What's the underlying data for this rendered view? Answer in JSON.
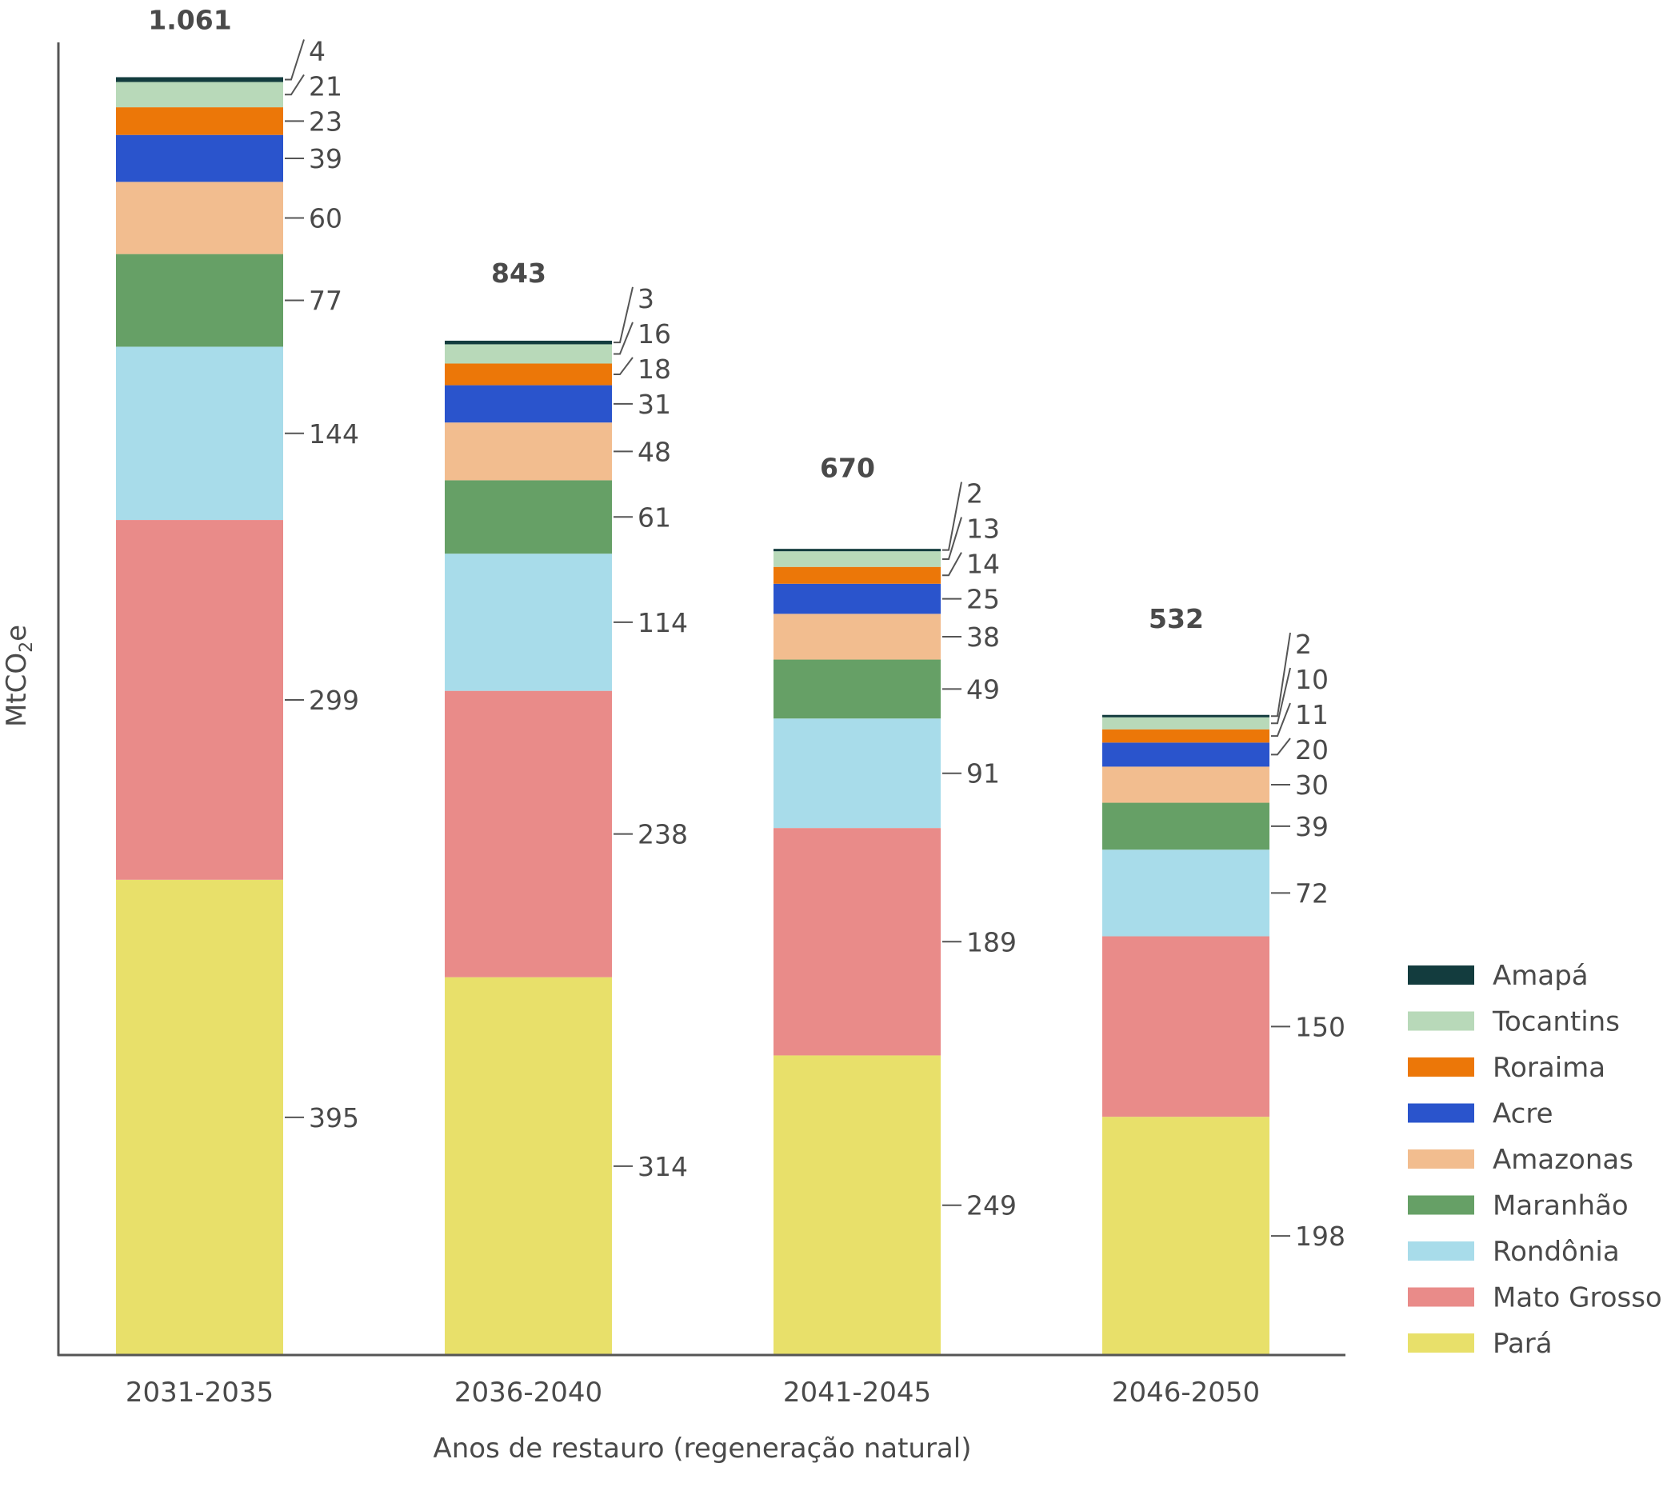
{
  "chart_data": {
    "type": "bar",
    "stacked": true,
    "title": "",
    "xlabel": "Anos de restauro (regeneração natural)",
    "ylabel": "MtCO2e",
    "ylabel_parts": {
      "main": "MtCO",
      "sub": "2",
      "suffix": "e"
    },
    "ylim": [
      0,
      1061
    ],
    "grid": false,
    "legend_position": "right-bottom",
    "categories": [
      "2031-2035",
      "2036-2040",
      "2041-2045",
      "2046-2050"
    ],
    "totals": [
      1061,
      843,
      670,
      532
    ],
    "total_labels": [
      "1.061",
      "843",
      "670",
      "532"
    ],
    "series": [
      {
        "name": "Pará",
        "color": "#e8e06a",
        "values": [
          395,
          314,
          249,
          198
        ]
      },
      {
        "name": "Mato Grosso",
        "color": "#e98b89",
        "values": [
          299,
          238,
          189,
          150
        ]
      },
      {
        "name": "Rondônia",
        "color": "#a8dcea",
        "values": [
          144,
          114,
          91,
          72
        ]
      },
      {
        "name": "Maranhão",
        "color": "#66a066",
        "values": [
          77,
          61,
          49,
          39
        ]
      },
      {
        "name": "Amazonas",
        "color": "#f2bd8f",
        "values": [
          60,
          48,
          38,
          30
        ]
      },
      {
        "name": "Acre",
        "color": "#2a54cc",
        "values": [
          39,
          31,
          25,
          20
        ]
      },
      {
        "name": "Roraima",
        "color": "#ec7708",
        "values": [
          23,
          18,
          14,
          11
        ]
      },
      {
        "name": "Tocantins",
        "color": "#b8d9b9",
        "values": [
          21,
          16,
          13,
          10
        ]
      },
      {
        "name": "Amapá",
        "color": "#133c3e",
        "values": [
          4,
          3,
          2,
          2
        ]
      }
    ],
    "legend_order": [
      "Amapá",
      "Tocantins",
      "Roraima",
      "Acre",
      "Amazonas",
      "Maranhão",
      "Rondônia",
      "Mato Grosso",
      "Pará"
    ]
  }
}
